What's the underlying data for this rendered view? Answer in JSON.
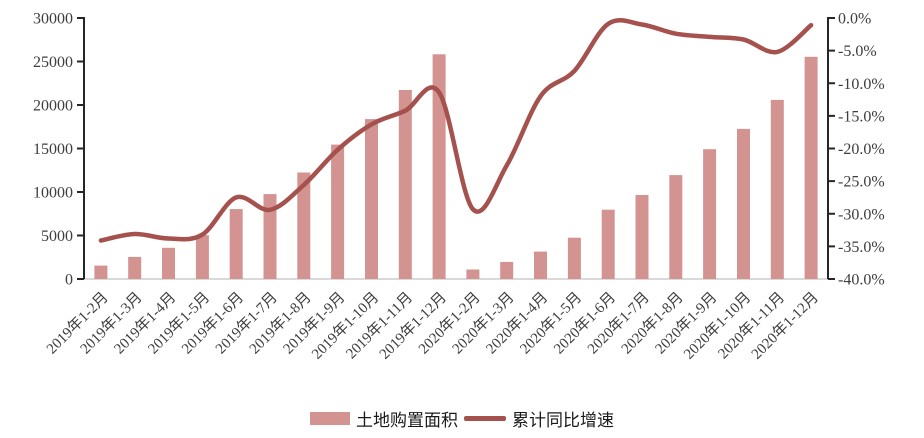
{
  "chart_data": {
    "type": "bar",
    "title": "",
    "xlabel": "",
    "ylabel_left": "",
    "ylabel_right": "",
    "grid": false,
    "legend_position": "bottom",
    "categories": [
      "2019年1-2月",
      "2019年1-3月",
      "2019年1-4月",
      "2019年1-5月",
      "2019年1-6月",
      "2019年1-7月",
      "2019年1-8月",
      "2019年1-9月",
      "2019年1-10月",
      "2019年1-11月",
      "2019年1-12月",
      "2020年1-2月",
      "2020年1-3月",
      "2020年1-4月",
      "2020年1-5月",
      "2020年1-6月",
      "2020年1-7月",
      "2020年1-8月",
      "2020年1-9月",
      "2020年1-10月",
      "2020年1-11月",
      "2020年1-12月"
    ],
    "series": [
      {
        "name": "土地购置面积",
        "type": "bar",
        "y_axis": "left",
        "color": "#d29391",
        "values": [
          1545,
          2543,
          3582,
          5033,
          8035,
          9761,
          12236,
          15454,
          18383,
          21720,
          25822,
          1092,
          1969,
          3151,
          4752,
          7965,
          9659,
          11947,
          14917,
          17251,
          20591,
          25536
        ]
      },
      {
        "name": "累计同比增速",
        "type": "line",
        "y_axis": "right",
        "color": "#a5514d",
        "values": [
          -34.1,
          -33.1,
          -33.8,
          -33.2,
          -27.5,
          -29.4,
          -25.6,
          -20.2,
          -16.3,
          -14.2,
          -11.4,
          -29.3,
          -22.6,
          -12.0,
          -8.1,
          -0.9,
          -1.0,
          -2.4,
          -2.9,
          -3.3,
          -5.2,
          -1.1
        ]
      }
    ],
    "left_axis": {
      "min": 0,
      "max": 30000,
      "step": 5000,
      "tick_labels": [
        "0",
        "5000",
        "10000",
        "15000",
        "20000",
        "25000",
        "30000"
      ]
    },
    "right_axis": {
      "min": -40,
      "max": 0,
      "step": 5,
      "suffix": "%",
      "decimals": 1,
      "tick_labels": [
        "0.0%",
        "-5.0%",
        "-10.0%",
        "-15.0%",
        "-20.0%",
        "-25.0%",
        "-30.0%",
        "-35.0%",
        "-40.0%"
      ]
    }
  },
  "colors": {
    "bar": "#d29391",
    "line": "#a5514d",
    "axis": "#262626",
    "baseline": "#d9d9d9",
    "tick_text": "#3d3d3d"
  }
}
